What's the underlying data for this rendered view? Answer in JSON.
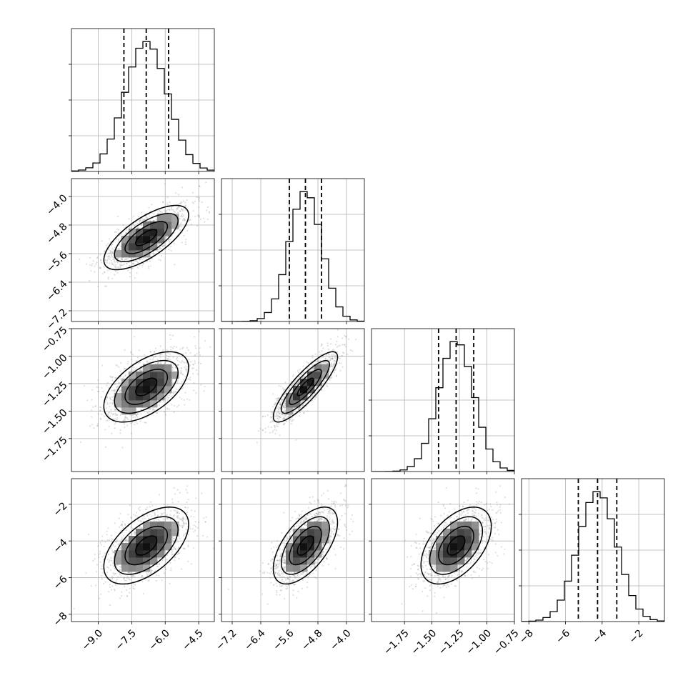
{
  "chart_data": {
    "type": "corner",
    "title": "",
    "parameters": [
      {
        "index": 0,
        "label": "",
        "range": [
          -10.2,
          -3.8
        ],
        "ticks": [
          -9.0,
          -7.5,
          -6.0,
          -4.5
        ],
        "tick_labels": [
          "−9.0",
          "−7.5",
          "−6.0",
          "−4.5"
        ],
        "mean": -6.85,
        "sd": 0.95,
        "quantiles": [
          -7.85,
          -6.85,
          -5.85
        ]
      },
      {
        "index": 1,
        "label": "",
        "range": [
          -7.5,
          -3.5
        ],
        "ticks": [
          -7.2,
          -6.4,
          -5.6,
          -4.8,
          -4.0
        ],
        "tick_labels": [
          "−7.2",
          "−6.4",
          "−5.6",
          "−4.8",
          "−4.0"
        ],
        "mean": -5.15,
        "sd": 0.45,
        "quantiles": [
          -5.6,
          -5.15,
          -4.7
        ]
      },
      {
        "index": 2,
        "label": "",
        "range": [
          -2.05,
          -0.75
        ],
        "ticks": [
          -1.75,
          -1.5,
          -1.25,
          -1.0,
          -0.75
        ],
        "tick_labels": [
          "−1.75",
          "−1.50",
          "−1.25",
          "−1.00",
          "−0.75"
        ],
        "mean": -1.28,
        "sd": 0.16,
        "quantiles": [
          -1.44,
          -1.28,
          -1.12
        ]
      },
      {
        "index": 3,
        "label": "",
        "range": [
          -8.4,
          -0.6
        ],
        "ticks": [
          -8,
          -6,
          -4,
          -2
        ],
        "tick_labels": [
          "−8",
          "−6",
          "−4",
          "−2"
        ],
        "mean": -4.25,
        "sd": 1.05,
        "quantiles": [
          -5.3,
          -4.25,
          -3.2
        ]
      }
    ],
    "correlations": [
      {
        "pair": [
          1,
          0
        ],
        "rho": 0.7
      },
      {
        "pair": [
          2,
          0
        ],
        "rho": 0.55
      },
      {
        "pair": [
          2,
          1
        ],
        "rho": 0.85
      },
      {
        "pair": [
          3,
          0
        ],
        "rho": 0.55
      },
      {
        "pair": [
          3,
          1
        ],
        "rho": 0.6
      },
      {
        "pair": [
          3,
          2
        ],
        "rho": 0.5
      }
    ],
    "histogram_bins": 20,
    "contour_levels": [
      0.5,
      1.0,
      1.5,
      2.0
    ],
    "grid": true,
    "colors": {
      "marks": "#000000",
      "grid": "#b0b0b0",
      "points": "#7f7f7f"
    }
  }
}
